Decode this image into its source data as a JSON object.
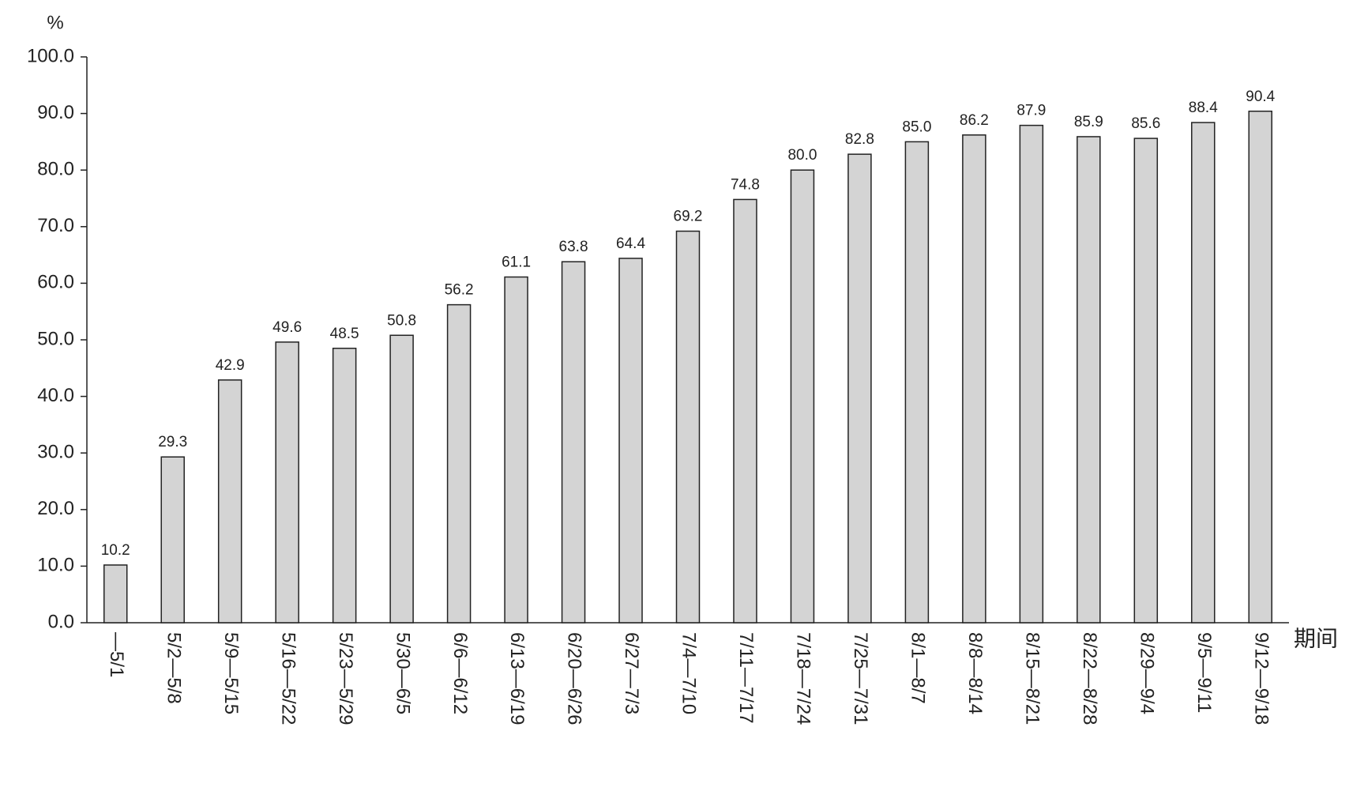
{
  "chart_data": {
    "type": "bar",
    "y_label": "%",
    "x_label": "期间",
    "categories": [
      "—5/1",
      "5/2—5/8",
      "5/9—5/15",
      "5/16—5/22",
      "5/23—5/29",
      "5/30—6/5",
      "6/6—6/12",
      "6/13—6/19",
      "6/20—6/26",
      "6/27—7/3",
      "7/4—7/10",
      "7/11—7/17",
      "7/18—7/24",
      "7/25—7/31",
      "8/1—8/7",
      "8/8—8/14",
      "8/15—8/21",
      "8/22—8/28",
      "8/29—9/4",
      "9/5—9/11",
      "9/12—9/18"
    ],
    "values": [
      10.2,
      29.3,
      42.9,
      49.6,
      48.5,
      50.8,
      56.2,
      61.1,
      63.8,
      64.4,
      69.2,
      74.8,
      80.0,
      82.8,
      85.0,
      86.2,
      87.9,
      85.9,
      85.6,
      88.4,
      90.4
    ],
    "value_labels": [
      "10.2",
      "29.3",
      "42.9",
      "49.6",
      "48.5",
      "50.8",
      "56.2",
      "61.1",
      "63.8",
      "64.4",
      "69.2",
      "74.8",
      "80.0",
      "82.8",
      "85.0",
      "86.2",
      "87.9",
      "85.9",
      "85.6",
      "88.4",
      "90.4"
    ],
    "color": "#d4d4d4",
    "ylim": [
      0,
      100
    ],
    "yticks": [
      {
        "value": 0,
        "label": "0.0"
      },
      {
        "value": 10,
        "label": "10.0"
      },
      {
        "value": 20,
        "label": "20.0"
      },
      {
        "value": 30,
        "label": "30.0"
      },
      {
        "value": 40,
        "label": "40.0"
      },
      {
        "value": 50,
        "label": "50.0"
      },
      {
        "value": 60,
        "label": "60.0"
      },
      {
        "value": 70,
        "label": "70.0"
      },
      {
        "value": 80,
        "label": "80.0"
      },
      {
        "value": 90,
        "label": "90.0"
      },
      {
        "value": 100,
        "label": "100.0"
      }
    ],
    "grid": false
  }
}
